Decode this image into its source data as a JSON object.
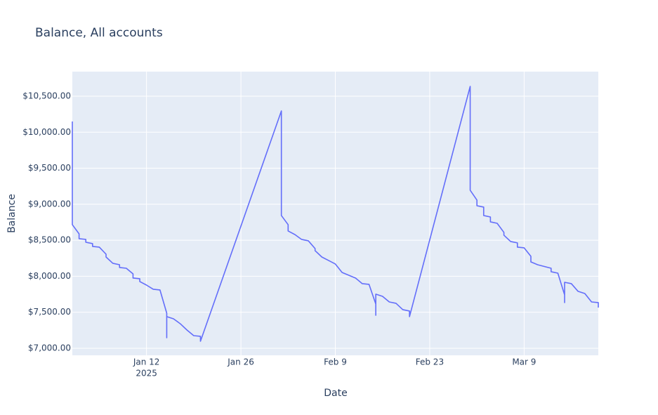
{
  "chart_data": {
    "type": "line",
    "title": "Balance, All accounts",
    "x_label": "Date",
    "y_label": "Balance",
    "x_year": "2025",
    "x": [
      "2025-01-01",
      "2025-01-01",
      "2025-01-02",
      "2025-01-02",
      "2025-01-03",
      "2025-01-03",
      "2025-01-04",
      "2025-01-04",
      "2025-01-05",
      "2025-01-06",
      "2025-01-06",
      "2025-01-07",
      "2025-01-08",
      "2025-01-08",
      "2025-01-09",
      "2025-01-10",
      "2025-01-10",
      "2025-01-11",
      "2025-01-11",
      "2025-01-12",
      "2025-01-13",
      "2025-01-14",
      "2025-01-15",
      "2025-01-15",
      "2025-01-15",
      "2025-01-16",
      "2025-01-17",
      "2025-01-18",
      "2025-01-19",
      "2025-01-20",
      "2025-01-20",
      "2025-02-01",
      "2025-02-01",
      "2025-02-02",
      "2025-02-02",
      "2025-02-03",
      "2025-02-04",
      "2025-02-05",
      "2025-02-06",
      "2025-02-06",
      "2025-02-07",
      "2025-02-08",
      "2025-02-09",
      "2025-02-10",
      "2025-02-12",
      "2025-02-13",
      "2025-02-14",
      "2025-02-15",
      "2025-02-15",
      "2025-02-15",
      "2025-02-16",
      "2025-02-17",
      "2025-02-18",
      "2025-02-19",
      "2025-02-20",
      "2025-02-20",
      "2025-03-01",
      "2025-03-01",
      "2025-03-02",
      "2025-03-02",
      "2025-03-03",
      "2025-03-03",
      "2025-03-04",
      "2025-03-04",
      "2025-03-05",
      "2025-03-06",
      "2025-03-06",
      "2025-03-07",
      "2025-03-08",
      "2025-03-08",
      "2025-03-09",
      "2025-03-10",
      "2025-03-10",
      "2025-03-11",
      "2025-03-13",
      "2025-03-13",
      "2025-03-14",
      "2025-03-15",
      "2025-03-15",
      "2025-03-15",
      "2025-03-16",
      "2025-03-17",
      "2025-03-18",
      "2025-03-19",
      "2025-03-20",
      "2025-03-20"
    ],
    "series": [
      {
        "name": "Balance",
        "color": "#636efa",
        "values": [
          10149,
          8716,
          8589,
          8521,
          8511,
          8472,
          8453,
          8414,
          8404,
          8306,
          8267,
          8180,
          8160,
          8121,
          8111,
          8033,
          7975,
          7965,
          7926,
          7877,
          7819,
          7809,
          7487,
          7146,
          7439,
          7409,
          7341,
          7253,
          7175,
          7166,
          7097,
          10295,
          8843,
          8716,
          8628,
          8579,
          8511,
          8492,
          8384,
          8355,
          8267,
          8219,
          8170,
          8053,
          7975,
          7897,
          7887,
          7614,
          7458,
          7751,
          7721,
          7643,
          7624,
          7536,
          7517,
          7439,
          10636,
          9194,
          9057,
          8979,
          8960,
          8843,
          8823,
          8755,
          8735,
          8609,
          8570,
          8482,
          8463,
          8404,
          8394,
          8277,
          8199,
          8160,
          8111,
          8063,
          8043,
          7741,
          7634,
          7916,
          7897,
          7790,
          7760,
          7643,
          7634,
          7565
        ]
      }
    ],
    "xlim": [
      "2025-01-01",
      "2025-03-20"
    ],
    "xticks": [
      {
        "value": "2025-01-12",
        "label": "Jan 12"
      },
      {
        "value": "2025-01-26",
        "label": "Jan 26"
      },
      {
        "value": "2025-02-09",
        "label": "Feb 9"
      },
      {
        "value": "2025-02-23",
        "label": "Feb 23"
      },
      {
        "value": "2025-03-09",
        "label": "Mar 9"
      }
    ],
    "ylim": [
      6902,
      10841
    ],
    "yticks": [
      {
        "value": 7000,
        "label": "$7,000.00"
      },
      {
        "value": 7500,
        "label": "$7,500.00"
      },
      {
        "value": 8000,
        "label": "$8,000.00"
      },
      {
        "value": 8500,
        "label": "$8,500.00"
      },
      {
        "value": 9000,
        "label": "$9,000.00"
      },
      {
        "value": 9500,
        "label": "$9,500.00"
      },
      {
        "value": 10000,
        "label": "$10,000.00"
      },
      {
        "value": 10500,
        "label": "$10,500.00"
      }
    ],
    "grid": true
  }
}
